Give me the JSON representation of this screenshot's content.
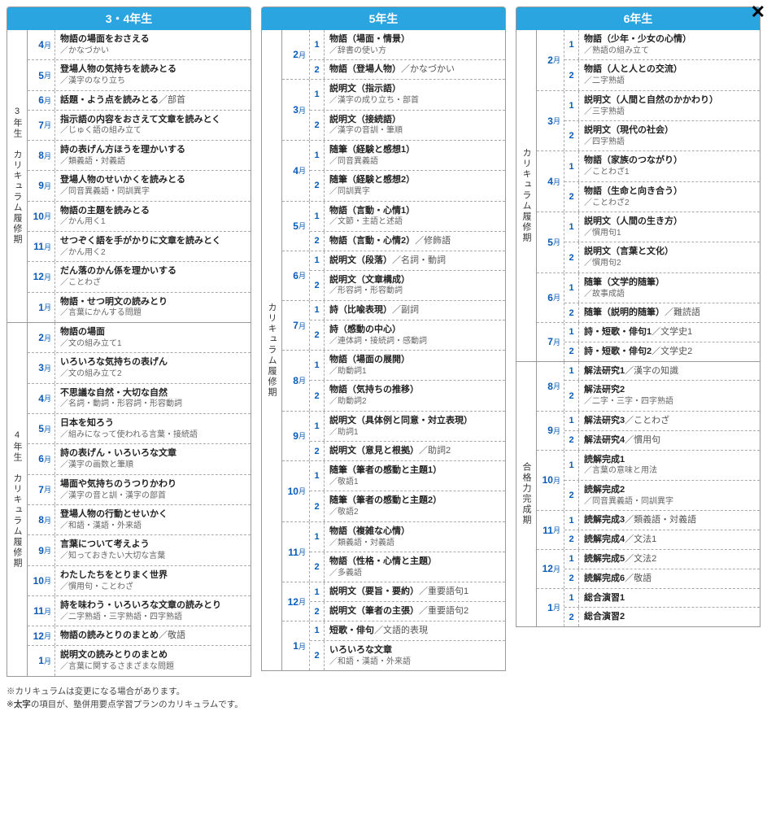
{
  "closeLabel": "✕",
  "columns": [
    {
      "header": "3・4年生",
      "periods": [
        {
          "label": "3年生　カリキュラム履修期",
          "months": [
            {
              "month": "4",
              "subs": [
                {
                  "num": "",
                  "title": "物語の場面をおさえる",
                  "rest": "",
                  "sub": "／かなづかい"
                }
              ]
            },
            {
              "month": "5",
              "subs": [
                {
                  "num": "",
                  "title": "登場人物の気持ちを読みとる",
                  "rest": "",
                  "sub": "／漢字のなり立ち"
                }
              ]
            },
            {
              "month": "6",
              "subs": [
                {
                  "num": "",
                  "title": "話題・よう点を読みとる",
                  "rest": "／部首",
                  "sub": ""
                }
              ]
            },
            {
              "month": "7",
              "subs": [
                {
                  "num": "",
                  "title": "指示語の内容をおさえて文章を読みとく",
                  "rest": "",
                  "sub": "／じゅく語の組み立て"
                }
              ]
            },
            {
              "month": "8",
              "subs": [
                {
                  "num": "",
                  "title": "詩の表げん方ほうを理かいする",
                  "rest": "",
                  "sub": "／類義語・対義語"
                }
              ]
            },
            {
              "month": "9",
              "subs": [
                {
                  "num": "",
                  "title": "登場人物のせいかくを読みとる",
                  "rest": "",
                  "sub": "／同音異義語・同訓異字"
                }
              ]
            },
            {
              "month": "10",
              "subs": [
                {
                  "num": "",
                  "title": "物語の主題を読みとる",
                  "rest": "",
                  "sub": "／かん用く1"
                }
              ]
            },
            {
              "month": "11",
              "subs": [
                {
                  "num": "",
                  "title": "せつぞく語を手がかりに文章を読みとく",
                  "rest": "",
                  "sub": "／かん用く2"
                }
              ]
            },
            {
              "month": "12",
              "subs": [
                {
                  "num": "",
                  "title": "だん落のかん係を理かいする",
                  "rest": "",
                  "sub": "／ことわざ"
                }
              ]
            },
            {
              "month": "1",
              "subs": [
                {
                  "num": "",
                  "title": "物語・せつ明文の読みとり",
                  "rest": "",
                  "sub": "／言葉にかんする問題"
                }
              ]
            }
          ]
        },
        {
          "label": "4年生　カリキュラム履修期",
          "months": [
            {
              "month": "2",
              "subs": [
                {
                  "num": "",
                  "title": "物語の場面",
                  "rest": "",
                  "sub": "／文の組み立て1"
                }
              ]
            },
            {
              "month": "3",
              "subs": [
                {
                  "num": "",
                  "title": "いろいろな気持ちの表げん",
                  "rest": "",
                  "sub": "／文の組み立て2"
                }
              ]
            },
            {
              "month": "4",
              "subs": [
                {
                  "num": "",
                  "title": "不思議な自然・大切な自然",
                  "rest": "",
                  "sub": "／名詞・動詞・形容詞・形容動詞"
                }
              ]
            },
            {
              "month": "5",
              "subs": [
                {
                  "num": "",
                  "title": "日本を知ろう",
                  "rest": "",
                  "sub": "／組みになって使われる言葉・接続語"
                }
              ]
            },
            {
              "month": "6",
              "subs": [
                {
                  "num": "",
                  "title": "詩の表げん・いろいろな文章",
                  "rest": "",
                  "sub": "／漢字の画数と筆順"
                }
              ]
            },
            {
              "month": "7",
              "subs": [
                {
                  "num": "",
                  "title": "場面や気持ちのうつりかわり",
                  "rest": "",
                  "sub": "／漢字の音と訓・漢字の部首"
                }
              ]
            },
            {
              "month": "8",
              "subs": [
                {
                  "num": "",
                  "title": "登場人物の行動とせいかく",
                  "rest": "",
                  "sub": "／和語・漢語・外来語"
                }
              ]
            },
            {
              "month": "9",
              "subs": [
                {
                  "num": "",
                  "title": "言葉について考えよう",
                  "rest": "",
                  "sub": "／知っておきたい大切な言葉"
                }
              ]
            },
            {
              "month": "10",
              "subs": [
                {
                  "num": "",
                  "title": "わたしたちをとりまく世界",
                  "rest": "",
                  "sub": "／慣用句・ことわざ"
                }
              ]
            },
            {
              "month": "11",
              "subs": [
                {
                  "num": "",
                  "title": "詩を味わう・いろいろな文章の読みとり",
                  "rest": "",
                  "sub": "／二字熟語・三字熟語・四字熟語"
                }
              ]
            },
            {
              "month": "12",
              "subs": [
                {
                  "num": "",
                  "title": "物語の読みとりのまとめ",
                  "rest": "／敬語",
                  "sub": ""
                }
              ]
            },
            {
              "month": "1",
              "subs": [
                {
                  "num": "",
                  "title": "説明文の読みとりのまとめ",
                  "rest": "",
                  "sub": "／言葉に関するさまざまな問題"
                }
              ]
            }
          ]
        }
      ]
    },
    {
      "header": "5年生",
      "periods": [
        {
          "label": "カリキュラム履修期",
          "months": [
            {
              "month": "2",
              "subs": [
                {
                  "num": "1",
                  "title": "物語（場面・情景）",
                  "rest": "",
                  "sub": "／辞書の使い方"
                },
                {
                  "num": "2",
                  "title": "物語（登場人物）",
                  "rest": "／かなづかい",
                  "sub": ""
                }
              ]
            },
            {
              "month": "3",
              "subs": [
                {
                  "num": "1",
                  "title": "説明文（指示語）",
                  "rest": "",
                  "sub": "／漢字の成り立ち・部首"
                },
                {
                  "num": "2",
                  "title": "説明文（接続語）",
                  "rest": "",
                  "sub": "／漢字の音訓・筆順"
                }
              ]
            },
            {
              "month": "4",
              "subs": [
                {
                  "num": "1",
                  "title": "随筆（経験と感想1）",
                  "rest": "",
                  "sub": "／同音異義語"
                },
                {
                  "num": "2",
                  "title": "随筆（経験と感想2）",
                  "rest": "",
                  "sub": "／同訓異字"
                }
              ]
            },
            {
              "month": "5",
              "subs": [
                {
                  "num": "1",
                  "title": "物語（言動・心情1）",
                  "rest": "",
                  "sub": "／文節・主語と述語"
                },
                {
                  "num": "2",
                  "title": "物語（言動・心情2）",
                  "rest": "／修飾語",
                  "sub": ""
                }
              ]
            },
            {
              "month": "6",
              "subs": [
                {
                  "num": "1",
                  "title": "説明文（段落）",
                  "rest": "／名詞・動詞",
                  "sub": ""
                },
                {
                  "num": "2",
                  "title": "説明文（文章構成）",
                  "rest": "",
                  "sub": "／形容詞・形容動詞"
                }
              ]
            },
            {
              "month": "7",
              "subs": [
                {
                  "num": "1",
                  "title": "詩（比喩表現）",
                  "rest": "／副詞",
                  "sub": ""
                },
                {
                  "num": "2",
                  "title": "詩（感動の中心）",
                  "rest": "",
                  "sub": "／連体詞・接続詞・感動詞"
                }
              ]
            },
            {
              "month": "8",
              "subs": [
                {
                  "num": "1",
                  "title": "物語（場面の展開）",
                  "rest": "",
                  "sub": "／助動詞1"
                },
                {
                  "num": "2",
                  "title": "物語（気持ちの推移）",
                  "rest": "",
                  "sub": "／助動詞2"
                }
              ]
            },
            {
              "month": "9",
              "subs": [
                {
                  "num": "1",
                  "title": "説明文（具体例と同意・対立表現）",
                  "rest": "",
                  "sub": "／助詞1"
                },
                {
                  "num": "2",
                  "title": "説明文（意見と根拠）",
                  "rest": "／助詞2",
                  "sub": ""
                }
              ]
            },
            {
              "month": "10",
              "subs": [
                {
                  "num": "1",
                  "title": "随筆（筆者の感動と主題1）",
                  "rest": "",
                  "sub": "／敬語1"
                },
                {
                  "num": "2",
                  "title": "随筆（筆者の感動と主題2）",
                  "rest": "",
                  "sub": "／敬語2"
                }
              ]
            },
            {
              "month": "11",
              "subs": [
                {
                  "num": "1",
                  "title": "物語（複雑な心情）",
                  "rest": "",
                  "sub": "／類義語・対義語"
                },
                {
                  "num": "2",
                  "title": "物語（性格・心情と主題）",
                  "rest": "",
                  "sub": "／多義語"
                }
              ]
            },
            {
              "month": "12",
              "subs": [
                {
                  "num": "1",
                  "title": "説明文（要旨・要約）",
                  "rest": "／重要語句1",
                  "sub": ""
                },
                {
                  "num": "2",
                  "title": "説明文（筆者の主張）",
                  "rest": "／重要語句2",
                  "sub": ""
                }
              ]
            },
            {
              "month": "1",
              "subs": [
                {
                  "num": "1",
                  "title": "短歌・俳句",
                  "rest": "／文語的表現",
                  "sub": ""
                },
                {
                  "num": "2",
                  "title": "いろいろな文章",
                  "rest": "",
                  "sub": "／和語・漢語・外来語"
                }
              ]
            }
          ]
        }
      ]
    },
    {
      "header": "6年生",
      "periods": [
        {
          "label": "カリキュラム履修期",
          "months": [
            {
              "month": "2",
              "subs": [
                {
                  "num": "1",
                  "title": "物語（少年・少女の心情）",
                  "rest": "",
                  "sub": "／熟語の組み立て"
                },
                {
                  "num": "2",
                  "title": "物語（人と人との交流）",
                  "rest": "",
                  "sub": "／二字熟語"
                }
              ]
            },
            {
              "month": "3",
              "subs": [
                {
                  "num": "1",
                  "title": "説明文（人間と自然のかかわり）",
                  "rest": "",
                  "sub": "／三字熟語"
                },
                {
                  "num": "2",
                  "title": "説明文（現代の社会）",
                  "rest": "",
                  "sub": "／四字熟語"
                }
              ]
            },
            {
              "month": "4",
              "subs": [
                {
                  "num": "1",
                  "title": "物語（家族のつながり）",
                  "rest": "",
                  "sub": "／ことわざ1"
                },
                {
                  "num": "2",
                  "title": "物語（生命と向き合う）",
                  "rest": "",
                  "sub": "／ことわざ2"
                }
              ]
            },
            {
              "month": "5",
              "subs": [
                {
                  "num": "1",
                  "title": "説明文（人間の生き方）",
                  "rest": "",
                  "sub": "／慣用句1"
                },
                {
                  "num": "2",
                  "title": "説明文（言葉と文化）",
                  "rest": "",
                  "sub": "／慣用句2"
                }
              ]
            },
            {
              "month": "6",
              "subs": [
                {
                  "num": "1",
                  "title": "随筆（文学的随筆）",
                  "rest": "",
                  "sub": "／故事成語"
                },
                {
                  "num": "2",
                  "title": "随筆（説明的随筆）",
                  "rest": "／難読語",
                  "sub": ""
                }
              ]
            },
            {
              "month": "7",
              "subs": [
                {
                  "num": "1",
                  "title": "詩・短歌・俳句1",
                  "rest": "／文学史1",
                  "sub": ""
                },
                {
                  "num": "2",
                  "title": "詩・短歌・俳句2",
                  "rest": "／文学史2",
                  "sub": ""
                }
              ]
            }
          ]
        },
        {
          "label": "合格力完成期",
          "months": [
            {
              "month": "8",
              "subs": [
                {
                  "num": "1",
                  "title": "解法研究1",
                  "rest": "／漢字の知識",
                  "sub": ""
                },
                {
                  "num": "2",
                  "title": "解法研究2",
                  "rest": "",
                  "sub": "／二字・三字・四字熟語"
                }
              ]
            },
            {
              "month": "9",
              "subs": [
                {
                  "num": "1",
                  "title": "解法研究3",
                  "rest": "／ことわざ",
                  "sub": ""
                },
                {
                  "num": "2",
                  "title": "解法研究4",
                  "rest": "／慣用句",
                  "sub": ""
                }
              ]
            },
            {
              "month": "10",
              "subs": [
                {
                  "num": "1",
                  "title": "読解完成1",
                  "rest": "",
                  "sub": "／言葉の意味と用法"
                },
                {
                  "num": "2",
                  "title": "読解完成2",
                  "rest": "",
                  "sub": "／同音異義語・同訓異字"
                }
              ]
            },
            {
              "month": "11",
              "subs": [
                {
                  "num": "1",
                  "title": "読解完成3",
                  "rest": "／類義語・対義語",
                  "sub": ""
                },
                {
                  "num": "2",
                  "title": "読解完成4",
                  "rest": "／文法1",
                  "sub": ""
                }
              ]
            },
            {
              "month": "12",
              "subs": [
                {
                  "num": "1",
                  "title": "読解完成5",
                  "rest": "／文法2",
                  "sub": ""
                },
                {
                  "num": "2",
                  "title": "読解完成6",
                  "rest": "／敬語",
                  "sub": ""
                }
              ]
            },
            {
              "month": "1",
              "subs": [
                {
                  "num": "1",
                  "title": "総合演習1",
                  "rest": "",
                  "sub": ""
                },
                {
                  "num": "2",
                  "title": "総合演習2",
                  "rest": "",
                  "sub": ""
                }
              ]
            }
          ]
        }
      ]
    }
  ],
  "notes": [
    "※カリキュラムは変更になる場合があります。",
    "※太字の項目が、塾併用要点学習プランのカリキュラムです。"
  ]
}
